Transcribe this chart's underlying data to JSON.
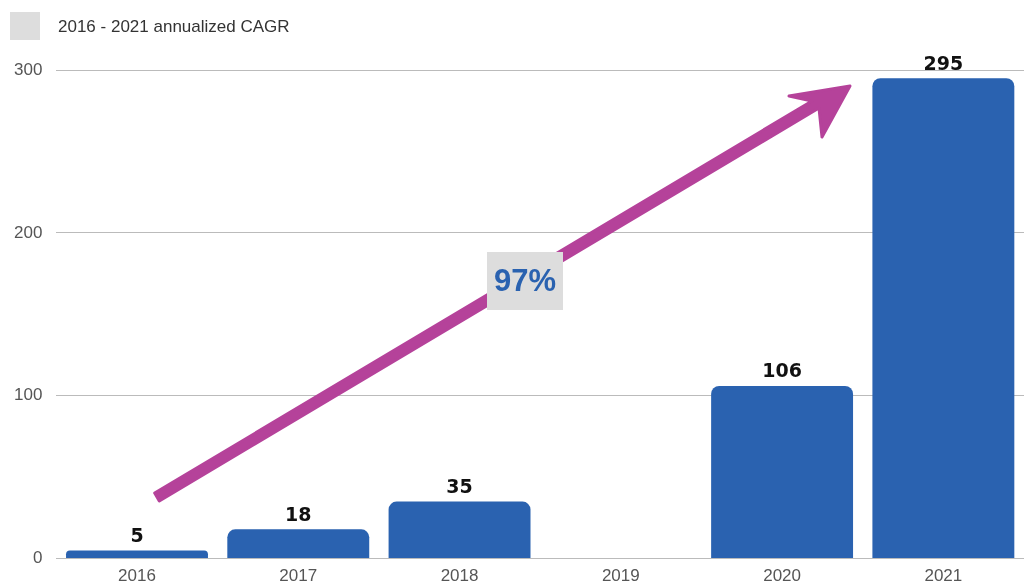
{
  "chart_data": {
    "type": "bar",
    "categories": [
      "2016",
      "2017",
      "2018",
      "2019",
      "2020",
      "2021"
    ],
    "values": [
      5,
      18,
      35,
      null,
      106,
      295
    ],
    "color": "#2a62b0",
    "ylim": [
      0,
      300
    ],
    "yticks": [
      0,
      100,
      200,
      300
    ],
    "grid": "y",
    "data_labels": true,
    "legend": false,
    "annotations": [
      "2016 - 2021 annualized CAGR",
      "97%"
    ]
  }
}
